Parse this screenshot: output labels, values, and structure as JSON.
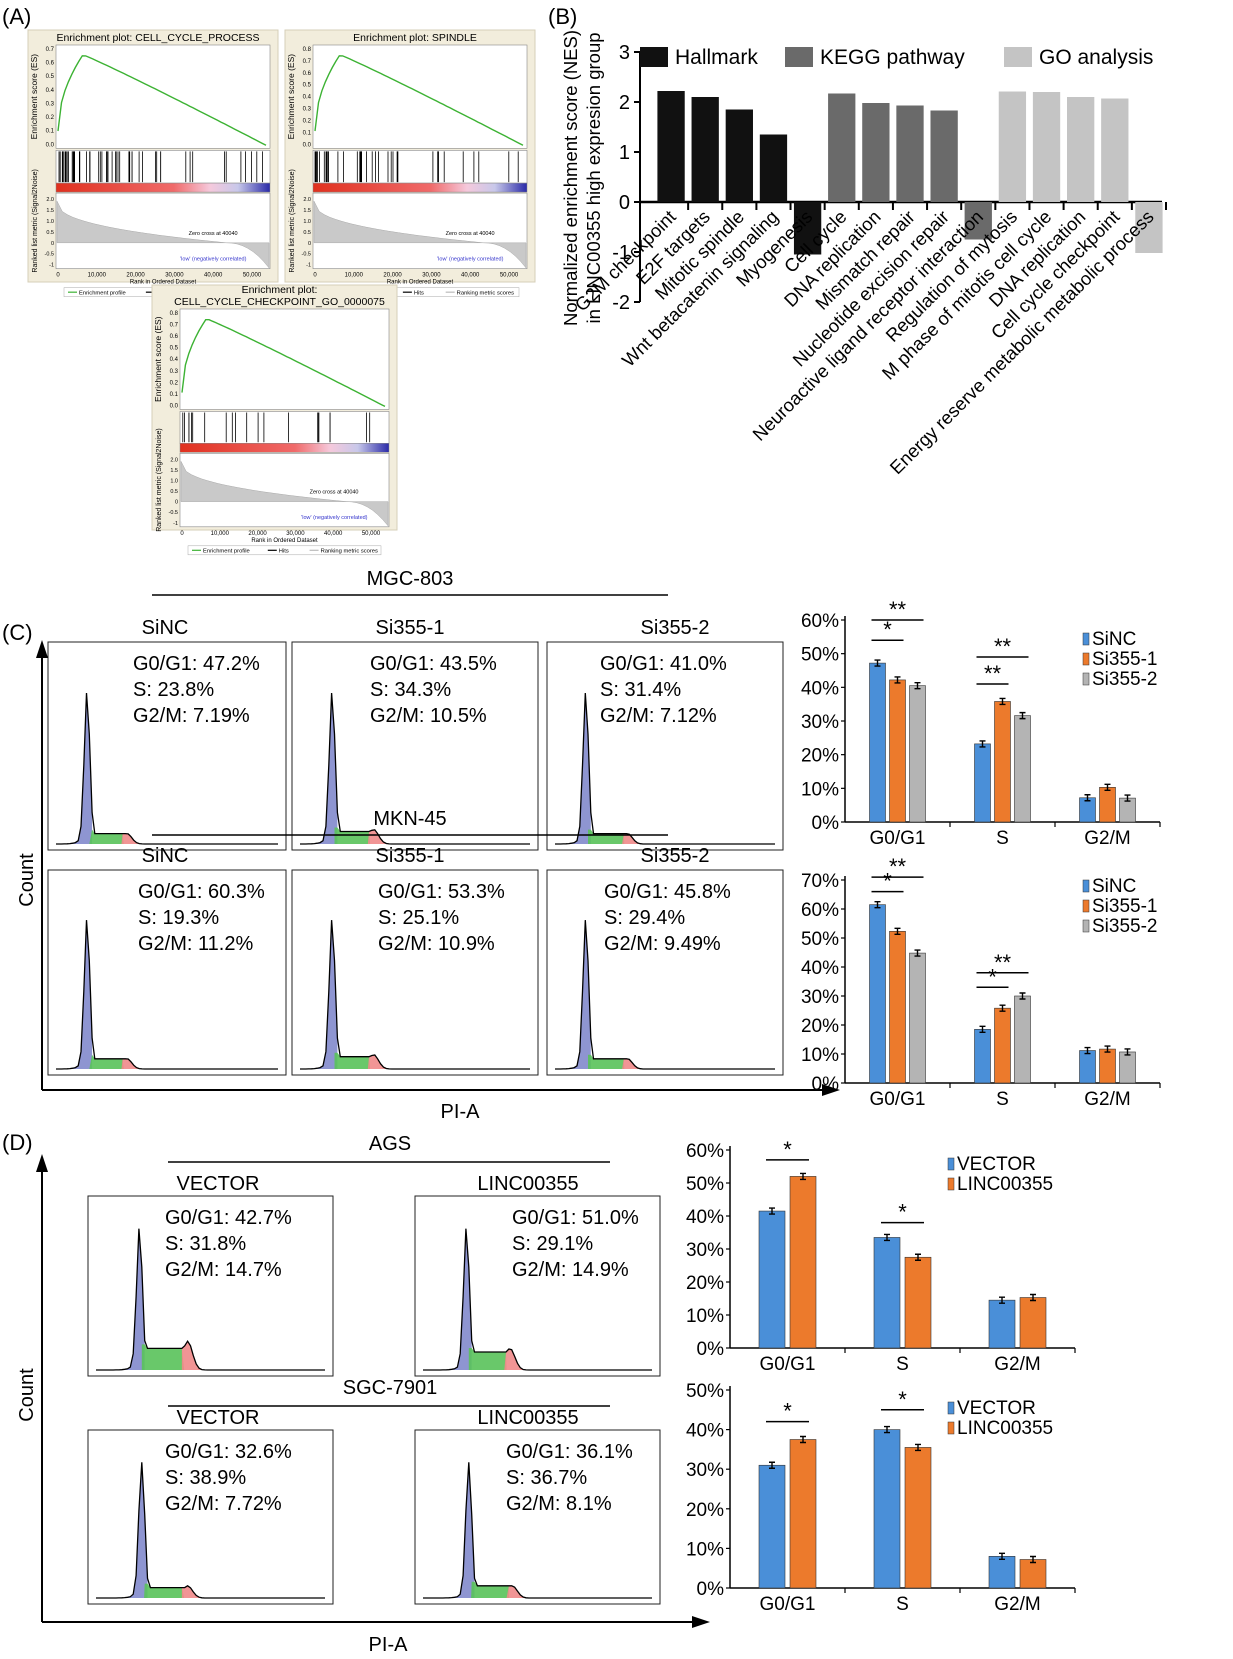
{
  "panels": {
    "A": "(A)",
    "B": "(B)",
    "C": "(C)",
    "D": "(D)"
  },
  "gsea": [
    {
      "title": "Enrichment plot: CELL_CYCLE_PROCESS",
      "es_ticks": [
        "0.7",
        "0.6",
        "0.5",
        "0.4",
        "0.3",
        "0.2",
        "0.1",
        "0.0"
      ],
      "ylabel": "Enrichment score (ES)",
      "zero_cross": "Zero cross at 40040"
    },
    {
      "title": "Enrichment plot: SPINDLE",
      "es_ticks": [
        "0.8",
        "0.7",
        "0.6",
        "0.5",
        "0.4",
        "0.3",
        "0.2",
        "0.1",
        "0.0"
      ],
      "ylabel": "Enrichment score (ES)",
      "zero_cross": "Zero cross at 40040"
    },
    {
      "title": "Enrichment plot:",
      "title2": "CELL_CYCLE_CHECKPOINT_GO_0000075",
      "es_ticks": [
        "0.8",
        "0.7",
        "0.6",
        "0.5",
        "0.4",
        "0.3",
        "0.2",
        "0.1",
        "0.0"
      ],
      "ylabel": "Enrichment score (ES)",
      "zero_cross": "Zero cross at 40040"
    }
  ],
  "gsea_common": {
    "ranked_label": "Ranked list metric (Signal2Noise)",
    "high_label": "'high' (positively correlated)",
    "low_label": "'low' (negatively correlated)",
    "rank_label": "Rank in Ordered Dataset",
    "rank_ticks": [
      "0",
      "10,000",
      "20,000",
      "30,000",
      "40,000",
      "50,000"
    ],
    "metric_ticks": [
      "2.0",
      "1.5",
      "1.0",
      "0.5",
      "0",
      "-0.5",
      "-1"
    ],
    "legend": [
      "Enrichment profile",
      "Hits",
      "Ranking metric scores"
    ]
  },
  "chart_data": [
    {
      "type": "bar",
      "panel": "B",
      "ylabel": "Normalized enrichment score (NES) in LINC00355 high expresion group",
      "ylim": [
        -2,
        3
      ],
      "yticks": [
        "3",
        "2",
        "1",
        "0",
        "-1",
        "-2"
      ],
      "legend": [
        "Hallmark",
        "KEGG pathway",
        "GO analysis"
      ],
      "colors": {
        "Hallmark": "#111111",
        "KEGG pathway": "#6a6a6a",
        "GO analysis": "#c4c4c4"
      },
      "categories": [
        "G2M checkpoint",
        "E2F targets",
        "Mitotic spindle",
        "Wnt betacatenin signaling",
        "Myogenesis",
        "Cell cycle",
        "DNA replication",
        "Mismatch repair",
        "Nucleotide excision repair",
        "Neuroactive ligand receptor interaction",
        "Regulation of mytosis",
        "M phase of mitotis cell cycle",
        "DNA replication",
        "Cell cycle checkpoint",
        "Energy reserve metabolic metabolic process"
      ],
      "groups": [
        "Hallmark",
        "Hallmark",
        "Hallmark",
        "Hallmark",
        "Hallmark",
        "KEGG pathway",
        "KEGG pathway",
        "KEGG pathway",
        "KEGG pathway",
        "KEGG pathway",
        "GO analysis",
        "GO analysis",
        "GO analysis",
        "GO analysis",
        "GO analysis"
      ],
      "values": [
        2.22,
        2.1,
        1.85,
        1.35,
        -1.05,
        2.17,
        1.98,
        1.93,
        1.83,
        -0.75,
        2.21,
        2.2,
        2.1,
        2.07,
        -1.02
      ]
    },
    {
      "type": "bar",
      "panel": "C",
      "cell_line": "MGC-803",
      "categories": [
        "G0/G1",
        "S",
        "G2/M"
      ],
      "yticks": [
        "60%",
        "50%",
        "40%",
        "30%",
        "20%",
        "10%",
        "0%"
      ],
      "ylim": [
        0,
        60
      ],
      "series": [
        {
          "name": "SiNC",
          "values": [
            47.2,
            23.2,
            7.2
          ]
        },
        {
          "name": "Si355-1",
          "values": [
            42.2,
            35.8,
            10.3
          ]
        },
        {
          "name": "Si355-2",
          "values": [
            40.5,
            31.6,
            7.1
          ]
        }
      ],
      "sig": [
        {
          "label": "*"
        },
        {
          "label": "**"
        },
        {
          "label": "**"
        },
        {
          "label": "**"
        }
      ]
    },
    {
      "type": "bar",
      "panel": "C",
      "cell_line": "MKN-45",
      "categories": [
        "G0/G1",
        "S",
        "G2/M"
      ],
      "yticks": [
        "70%",
        "60%",
        "50%",
        "40%",
        "30%",
        "20%",
        "10%",
        "0%"
      ],
      "ylim": [
        0,
        70
      ],
      "series": [
        {
          "name": "SiNC",
          "values": [
            61.5,
            18.5,
            11.2
          ]
        },
        {
          "name": "Si355-1",
          "values": [
            52.3,
            25.8,
            11.7
          ]
        },
        {
          "name": "Si355-2",
          "values": [
            44.8,
            30.0,
            10.7
          ]
        }
      ],
      "sig": [
        {
          "label": "*"
        },
        {
          "label": "**"
        },
        {
          "label": "*"
        },
        {
          "label": "**"
        }
      ]
    },
    {
      "type": "bar",
      "panel": "D",
      "cell_line": "AGS",
      "categories": [
        "G0/G1",
        "S",
        "G2/M"
      ],
      "yticks": [
        "60%",
        "50%",
        "40%",
        "30%",
        "20%",
        "10%",
        "0%"
      ],
      "ylim": [
        0,
        60
      ],
      "series": [
        {
          "name": "VECTOR",
          "values": [
            41.5,
            33.5,
            14.5
          ]
        },
        {
          "name": "LINC00355",
          "values": [
            52.0,
            27.5,
            15.3
          ]
        }
      ],
      "sig": [
        {
          "label": "*"
        },
        {
          "label": "*"
        }
      ]
    },
    {
      "type": "bar",
      "panel": "D",
      "cell_line": "SGC-7901",
      "categories": [
        "G0/G1",
        "S",
        "G2/M"
      ],
      "yticks": [
        "50%",
        "40%",
        "30%",
        "20%",
        "10%",
        "0%"
      ],
      "ylim": [
        0,
        50
      ],
      "series": [
        {
          "name": "VECTOR",
          "values": [
            31.0,
            40.0,
            8.0
          ]
        },
        {
          "name": "LINC00355",
          "values": [
            37.5,
            35.5,
            7.2
          ]
        }
      ],
      "sig": [
        {
          "label": "*"
        },
        {
          "label": "*"
        }
      ]
    }
  ],
  "bar_colors": {
    "blue": "#4a8fd8",
    "orange": "#ec7a2c",
    "gray": "#b4b4b4"
  },
  "flow": {
    "C": {
      "rows": [
        {
          "cell_line": "MGC-803",
          "cols": [
            "SiNC",
            "Si355-1",
            "Si355-2"
          ],
          "stats": [
            [
              "G0/G1: 47.2%",
              "S: 23.8%",
              "G2/M: 7.19%"
            ],
            [
              "G0/G1: 43.5%",
              "S: 34.3%",
              "G2/M: 10.5%"
            ],
            [
              "G0/G1: 41.0%",
              "S: 31.4%",
              "G2/M: 7.12%"
            ]
          ]
        },
        {
          "cell_line": "MKN-45",
          "cols": [
            "SiNC",
            "Si355-1",
            "Si355-2"
          ],
          "stats": [
            [
              "G0/G1: 60.3%",
              "S: 19.3%",
              "G2/M: 11.2%"
            ],
            [
              "G0/G1: 53.3%",
              "S: 25.1%",
              "G2/M: 10.9%"
            ],
            [
              "G0/G1: 45.8%",
              "S: 29.4%",
              "G2/M: 9.49%"
            ]
          ]
        }
      ],
      "ylabel": "Count",
      "xlabel": "PI-A"
    },
    "D": {
      "rows": [
        {
          "cell_line": "AGS",
          "cols": [
            "VECTOR",
            "LINC00355"
          ],
          "stats": [
            [
              "G0/G1: 42.7%",
              "S: 31.8%",
              "G2/M: 14.7%"
            ],
            [
              "G0/G1: 51.0%",
              "S: 29.1%",
              "G2/M: 14.9%"
            ]
          ]
        },
        {
          "cell_line": "SGC-7901",
          "cols": [
            "VECTOR",
            "LINC00355"
          ],
          "stats": [
            [
              "G0/G1: 32.6%",
              "S: 38.9%",
              "G2/M: 7.72%"
            ],
            [
              "G0/G1: 36.1%",
              "S: 36.7%",
              "G2/M: 8.1%"
            ]
          ]
        }
      ],
      "ylabel": "Count",
      "xlabel": "PI-A"
    }
  }
}
